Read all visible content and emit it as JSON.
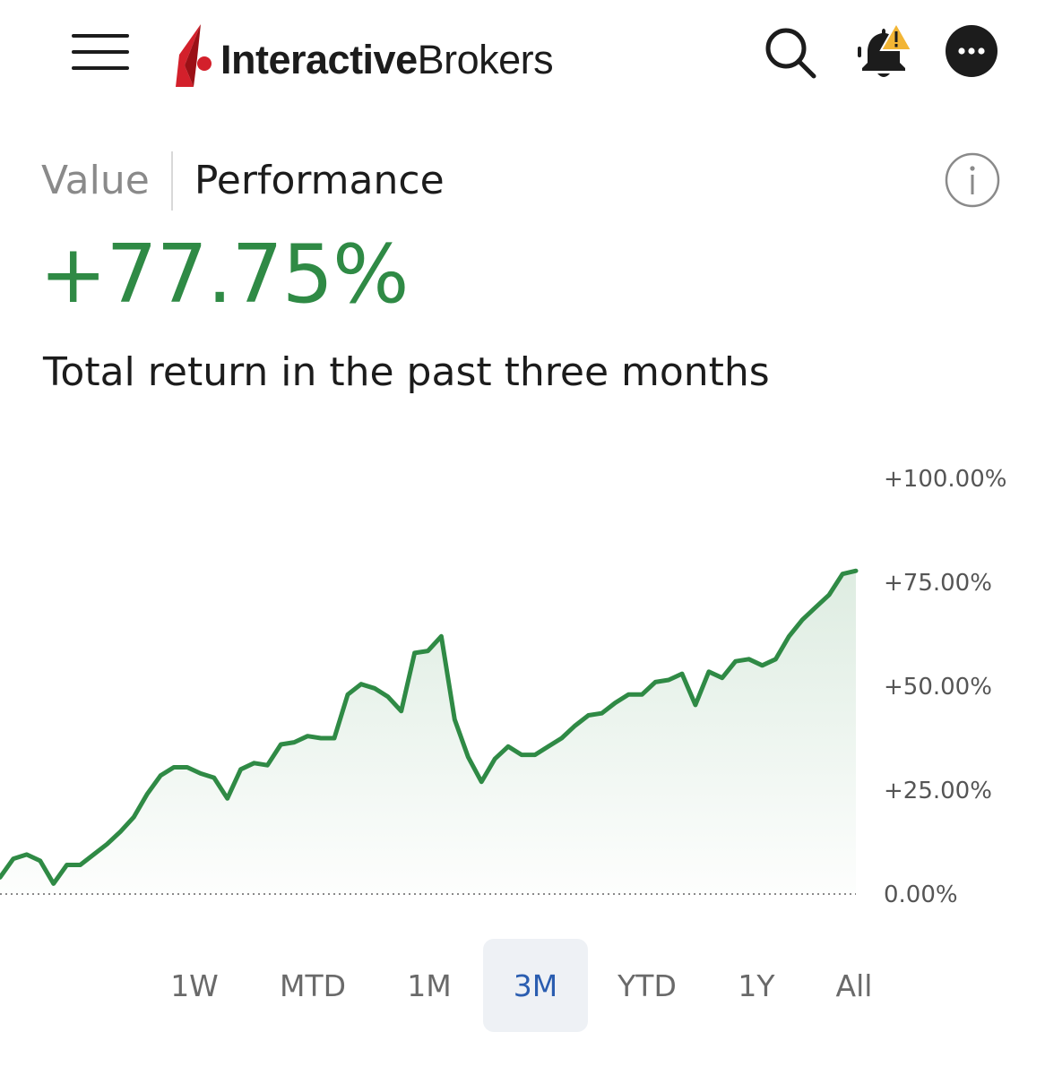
{
  "header": {
    "brand_bold": "Interactive",
    "brand_light": "Brokers",
    "colors": {
      "brand_red": "#d3202b"
    },
    "icons": [
      "menu-icon",
      "search-icon",
      "bell-alert-icon",
      "more-icon"
    ]
  },
  "tabs": [
    {
      "label": "Value",
      "active": false
    },
    {
      "label": "Performance",
      "active": true
    }
  ],
  "summary": {
    "return_value": "+77.75%",
    "caption": "Total return in the past three months"
  },
  "colors": {
    "positive_green": "#2f8a45",
    "active_range_bg": "#eef1f5",
    "active_range_text": "#2a5db0"
  },
  "chart_data": {
    "type": "area",
    "title": "",
    "xlabel": "",
    "ylabel": "",
    "ylim": [
      0,
      100
    ],
    "y_ticks": [
      "0.00%",
      "+25.00%",
      "+50.00%",
      "+75.00%",
      "+100.00%"
    ],
    "y_tick_values": [
      0,
      25,
      50,
      75,
      100
    ],
    "y_axis_position": "right",
    "baseline": "dotted",
    "series": [
      {
        "values": [
          4,
          8.5,
          9.5,
          8,
          2.5,
          7,
          7,
          9.5,
          12,
          15,
          18.5,
          24,
          28.5,
          30.5,
          30.5,
          29,
          28,
          23,
          30,
          31.5,
          31,
          36,
          36.5,
          38,
          37.5,
          37.5,
          48,
          50.5,
          49.5,
          47.5,
          44,
          58,
          58.5,
          62,
          42,
          33,
          27,
          32.5,
          35.5,
          33.5,
          33.5,
          35.5,
          37.5,
          40.5,
          43,
          43.5,
          46,
          48,
          48,
          51,
          51.5,
          53,
          45.5,
          53.5,
          52,
          56,
          56.5,
          55,
          56.5,
          62,
          66,
          69,
          72,
          77,
          77.75
        ]
      }
    ]
  },
  "ranges": [
    {
      "label": "1W",
      "active": false
    },
    {
      "label": "MTD",
      "active": false
    },
    {
      "label": "1M",
      "active": false
    },
    {
      "label": "3M",
      "active": true
    },
    {
      "label": "YTD",
      "active": false
    },
    {
      "label": "1Y",
      "active": false
    },
    {
      "label": "All",
      "active": false
    }
  ]
}
